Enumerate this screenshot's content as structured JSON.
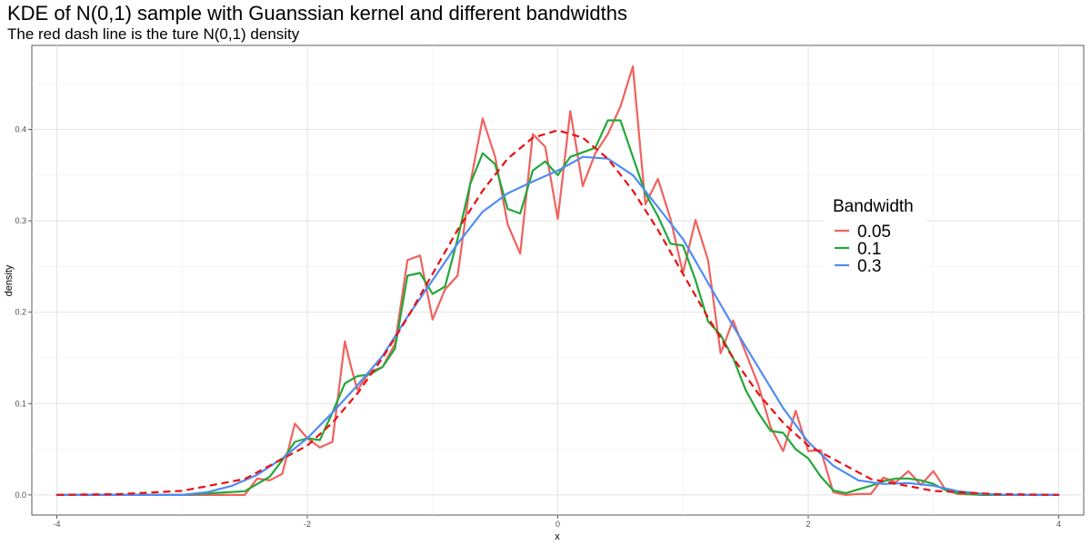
{
  "chart_data": {
    "type": "line",
    "title": "KDE of N(0,1) sample with Guanssian kernel and different bandwidths",
    "subtitle": "The red dash line is the ture N(0,1) density",
    "xlabel": "x",
    "ylabel": "density",
    "xlim": [
      -4.2,
      4.2
    ],
    "ylim": [
      -0.022,
      0.492
    ],
    "x_ticks": [
      -4,
      -2,
      0,
      2,
      4
    ],
    "y_ticks": [
      0.0,
      0.1,
      0.2,
      0.3,
      0.4
    ],
    "grid": true,
    "legend": {
      "title": "Bandwidth",
      "placement": "right-inside",
      "entries": [
        "0.05",
        "0.1",
        "0.3"
      ]
    },
    "series": [
      {
        "name": "0.05",
        "color": "#F0625E",
        "x": [
          -4.0,
          -3.0,
          -2.6,
          -2.5,
          -2.4,
          -2.3,
          -2.2,
          -2.1,
          -2.0,
          -1.9,
          -1.8,
          -1.7,
          -1.65,
          -1.6,
          -1.5,
          -1.4,
          -1.3,
          -1.2,
          -1.1,
          -1.0,
          -0.9,
          -0.8,
          -0.7,
          -0.6,
          -0.5,
          -0.4,
          -0.3,
          -0.2,
          -0.1,
          0.0,
          0.1,
          0.2,
          0.3,
          0.4,
          0.5,
          0.6,
          0.7,
          0.8,
          0.9,
          1.0,
          1.1,
          1.2,
          1.3,
          1.4,
          1.5,
          1.6,
          1.7,
          1.8,
          1.9,
          2.0,
          2.1,
          2.2,
          2.3,
          2.4,
          2.5,
          2.6,
          2.7,
          2.8,
          2.9,
          3.0,
          3.1,
          3.2,
          3.4,
          4.0
        ],
        "values": [
          0.0,
          0.0,
          0.0,
          0.0,
          0.018,
          0.016,
          0.023,
          0.078,
          0.062,
          0.052,
          0.058,
          0.168,
          0.14,
          0.115,
          0.135,
          0.14,
          0.165,
          0.257,
          0.262,
          0.192,
          0.225,
          0.24,
          0.34,
          0.412,
          0.37,
          0.296,
          0.264,
          0.395,
          0.381,
          0.302,
          0.42,
          0.338,
          0.374,
          0.395,
          0.425,
          0.469,
          0.318,
          0.346,
          0.302,
          0.243,
          0.301,
          0.257,
          0.155,
          0.191,
          0.156,
          0.121,
          0.074,
          0.048,
          0.092,
          0.048,
          0.049,
          0.003,
          0.0,
          0.001,
          0.001,
          0.019,
          0.014,
          0.026,
          0.011,
          0.026,
          0.005,
          0.001,
          0.0,
          0.0
        ]
      },
      {
        "name": "0.1",
        "color": "#22A83A",
        "x": [
          -4.0,
          -3.0,
          -2.5,
          -2.4,
          -2.3,
          -2.2,
          -2.1,
          -2.0,
          -1.9,
          -1.8,
          -1.7,
          -1.6,
          -1.5,
          -1.4,
          -1.3,
          -1.2,
          -1.1,
          -1.0,
          -0.9,
          -0.8,
          -0.7,
          -0.6,
          -0.5,
          -0.4,
          -0.3,
          -0.2,
          -0.1,
          0.0,
          0.1,
          0.2,
          0.3,
          0.4,
          0.5,
          0.6,
          0.7,
          0.8,
          0.9,
          1.0,
          1.1,
          1.2,
          1.3,
          1.4,
          1.5,
          1.6,
          1.7,
          1.8,
          1.9,
          2.0,
          2.1,
          2.2,
          2.3,
          2.4,
          2.5,
          2.6,
          2.7,
          2.8,
          2.9,
          3.0,
          3.1,
          3.2,
          3.4,
          4.0
        ],
        "values": [
          0.0,
          0.0,
          0.004,
          0.012,
          0.02,
          0.038,
          0.058,
          0.062,
          0.06,
          0.09,
          0.122,
          0.13,
          0.132,
          0.14,
          0.16,
          0.24,
          0.243,
          0.22,
          0.228,
          0.28,
          0.34,
          0.374,
          0.362,
          0.313,
          0.308,
          0.355,
          0.365,
          0.35,
          0.37,
          0.375,
          0.38,
          0.41,
          0.41,
          0.37,
          0.33,
          0.305,
          0.275,
          0.273,
          0.235,
          0.19,
          0.175,
          0.15,
          0.115,
          0.09,
          0.07,
          0.068,
          0.05,
          0.04,
          0.02,
          0.005,
          0.002,
          0.006,
          0.01,
          0.015,
          0.018,
          0.018,
          0.016,
          0.012,
          0.005,
          0.002,
          0.0,
          0.0
        ]
      },
      {
        "name": "0.3",
        "color": "#4F8CF3",
        "x": [
          -4.0,
          -3.5,
          -3.0,
          -2.8,
          -2.6,
          -2.4,
          -2.2,
          -2.0,
          -1.8,
          -1.6,
          -1.4,
          -1.2,
          -1.0,
          -0.8,
          -0.6,
          -0.4,
          -0.2,
          0.0,
          0.2,
          0.4,
          0.6,
          0.8,
          1.0,
          1.2,
          1.4,
          1.6,
          1.8,
          2.0,
          2.2,
          2.4,
          2.6,
          2.8,
          3.0,
          3.2,
          3.4,
          3.6,
          4.0
        ],
        "values": [
          0.0,
          0.0,
          0.0,
          0.003,
          0.01,
          0.022,
          0.04,
          0.062,
          0.09,
          0.12,
          0.152,
          0.195,
          0.235,
          0.275,
          0.31,
          0.33,
          0.343,
          0.355,
          0.37,
          0.368,
          0.35,
          0.315,
          0.28,
          0.232,
          0.185,
          0.14,
          0.095,
          0.058,
          0.032,
          0.016,
          0.012,
          0.013,
          0.01,
          0.004,
          0.001,
          0.0,
          0.0
        ]
      },
      {
        "name": "",
        "color": "#E81010",
        "dashed": true,
        "x": [
          -4.0,
          -3.5,
          -3.0,
          -2.5,
          -2.0,
          -1.8,
          -1.6,
          -1.4,
          -1.2,
          -1.0,
          -0.8,
          -0.6,
          -0.4,
          -0.2,
          0.0,
          0.2,
          0.4,
          0.6,
          0.8,
          1.0,
          1.2,
          1.4,
          1.6,
          1.8,
          2.0,
          2.5,
          3.0,
          3.5,
          4.0
        ],
        "values": [
          0.0001,
          0.0009,
          0.0044,
          0.0175,
          0.054,
          0.079,
          0.111,
          0.15,
          0.194,
          0.242,
          0.29,
          0.333,
          0.368,
          0.391,
          0.399,
          0.391,
          0.368,
          0.333,
          0.29,
          0.242,
          0.194,
          0.15,
          0.111,
          0.079,
          0.054,
          0.0175,
          0.0044,
          0.0009,
          0.0001
        ]
      }
    ]
  }
}
